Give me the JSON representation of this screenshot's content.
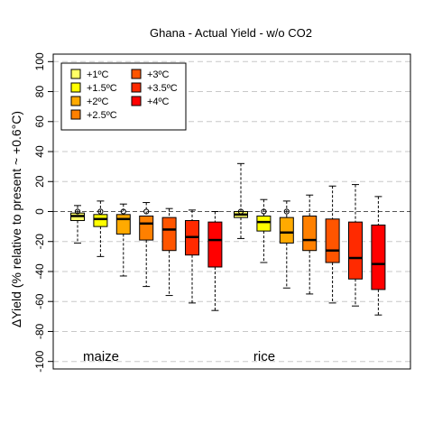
{
  "chart_data": {
    "type": "boxplot",
    "title": "Ghana - Actual Yield - w/o CO2",
    "ylabel": "ΔYield (% relative to present ~ +0.6°C)",
    "ylim": [
      -105,
      105
    ],
    "yticks": [
      -100,
      -80,
      -60,
      -40,
      -20,
      0,
      20,
      40,
      60,
      80,
      100
    ],
    "grid": "horizontal dashed",
    "legend_position": "top-left",
    "legend": [
      {
        "label": "+1ºC",
        "color": "#FFFF66"
      },
      {
        "label": "+1.5ºC",
        "color": "#FFFF00"
      },
      {
        "label": "+2ºC",
        "color": "#FFAA00"
      },
      {
        "label": "+2.5ºC",
        "color": "#FF8000"
      },
      {
        "label": "+3ºC",
        "color": "#FF5500"
      },
      {
        "label": "+3.5ºC",
        "color": "#FF2A00"
      },
      {
        "label": "+4ºC",
        "color": "#FF0000"
      }
    ],
    "groups": [
      {
        "name": "maize",
        "boxes": [
          {
            "level": "+1ºC",
            "min": -21,
            "q1": -6,
            "median": -3,
            "q3": -1,
            "max": 4,
            "outliers": [
              0
            ]
          },
          {
            "level": "+1.5ºC",
            "min": -30,
            "q1": -10,
            "median": -5,
            "q3": -2,
            "max": 7,
            "outliers": [
              0
            ]
          },
          {
            "level": "+2ºC",
            "min": -43,
            "q1": -15,
            "median": -5,
            "q3": -2,
            "max": 5,
            "outliers": [
              0
            ]
          },
          {
            "level": "+2.5ºC",
            "min": -50,
            "q1": -19,
            "median": -8,
            "q3": -3,
            "max": 6,
            "outliers": [
              0
            ]
          },
          {
            "level": "+3ºC",
            "min": -56,
            "q1": -26,
            "median": -12,
            "q3": -4,
            "max": 2,
            "outliers": []
          },
          {
            "level": "+3.5ºC",
            "min": -61,
            "q1": -29,
            "median": -17,
            "q3": -6,
            "max": 1,
            "outliers": []
          },
          {
            "level": "+4ºC",
            "min": -66,
            "q1": -37,
            "median": -19,
            "q3": -7,
            "max": 0,
            "outliers": []
          }
        ]
      },
      {
        "name": "rice",
        "boxes": [
          {
            "level": "+1ºC",
            "min": -18,
            "q1": -4,
            "median": -2,
            "q3": 0,
            "max": 32,
            "outliers": [
              0
            ]
          },
          {
            "level": "+1.5ºC",
            "min": -34,
            "q1": -13,
            "median": -7,
            "q3": -3,
            "max": 8,
            "outliers": [
              0
            ]
          },
          {
            "level": "+2ºC",
            "min": -51,
            "q1": -21,
            "median": -14,
            "q3": -4,
            "max": 7,
            "outliers": [
              0
            ]
          },
          {
            "level": "+2.5ºC",
            "min": -55,
            "q1": -26,
            "median": -19,
            "q3": -3,
            "max": 11,
            "outliers": []
          },
          {
            "level": "+3ºC",
            "min": -61,
            "q1": -34,
            "median": -26,
            "q3": -5,
            "max": 17,
            "outliers": []
          },
          {
            "level": "+3.5ºC",
            "min": -63,
            "q1": -45,
            "median": -31,
            "q3": -7,
            "max": 18,
            "outliers": []
          },
          {
            "level": "+4ºC",
            "min": -69,
            "q1": -52,
            "median": -35,
            "q3": -9,
            "max": 10,
            "outliers": []
          }
        ]
      }
    ]
  }
}
